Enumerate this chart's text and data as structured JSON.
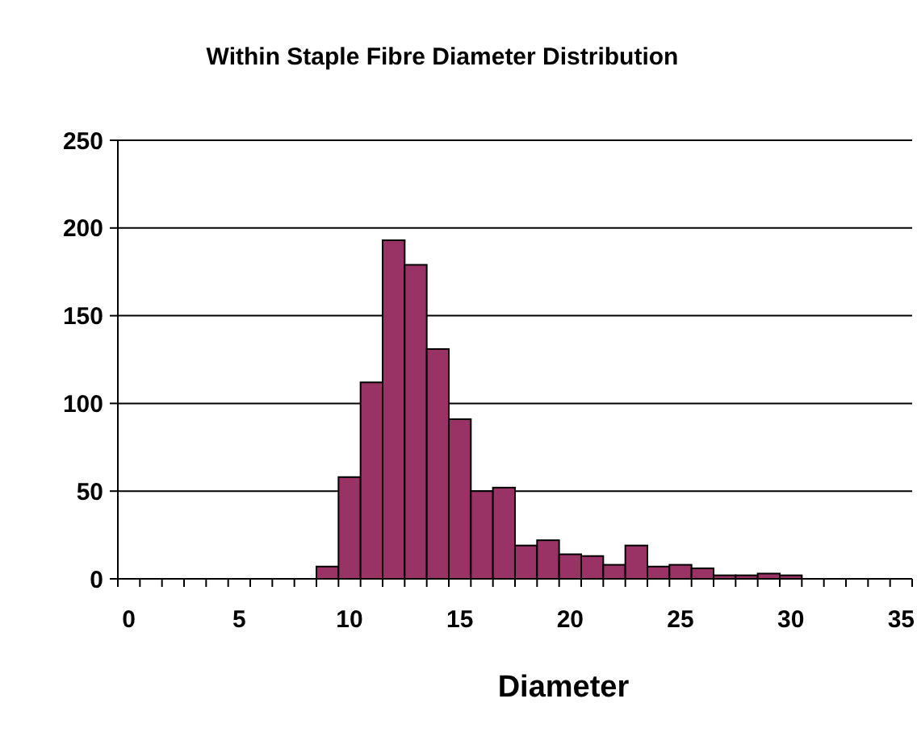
{
  "chart_data": {
    "type": "bar",
    "title": "Within Staple Fibre Diameter Distribution",
    "xlabel": "Diameter",
    "categories": [
      "0",
      null,
      null,
      null,
      null,
      "5",
      null,
      null,
      null,
      null,
      "10",
      null,
      null,
      null,
      null,
      "15",
      null,
      null,
      null,
      null,
      "20",
      null,
      null,
      null,
      null,
      "25",
      null,
      null,
      null,
      null,
      "30",
      null,
      null,
      null,
      null,
      "35"
    ],
    "values": [
      0,
      0,
      0,
      0,
      0,
      0,
      0,
      0,
      0,
      7,
      58,
      112,
      193,
      179,
      131,
      91,
      50,
      52,
      19,
      22,
      14,
      13,
      8,
      19,
      7,
      8,
      6,
      2,
      2,
      3,
      2,
      0,
      0,
      0,
      0,
      0
    ],
    "color": "#993366",
    "ylim": [
      0,
      250
    ],
    "yticks": [
      0,
      50,
      100,
      150,
      200,
      250
    ],
    "grid": "y"
  }
}
